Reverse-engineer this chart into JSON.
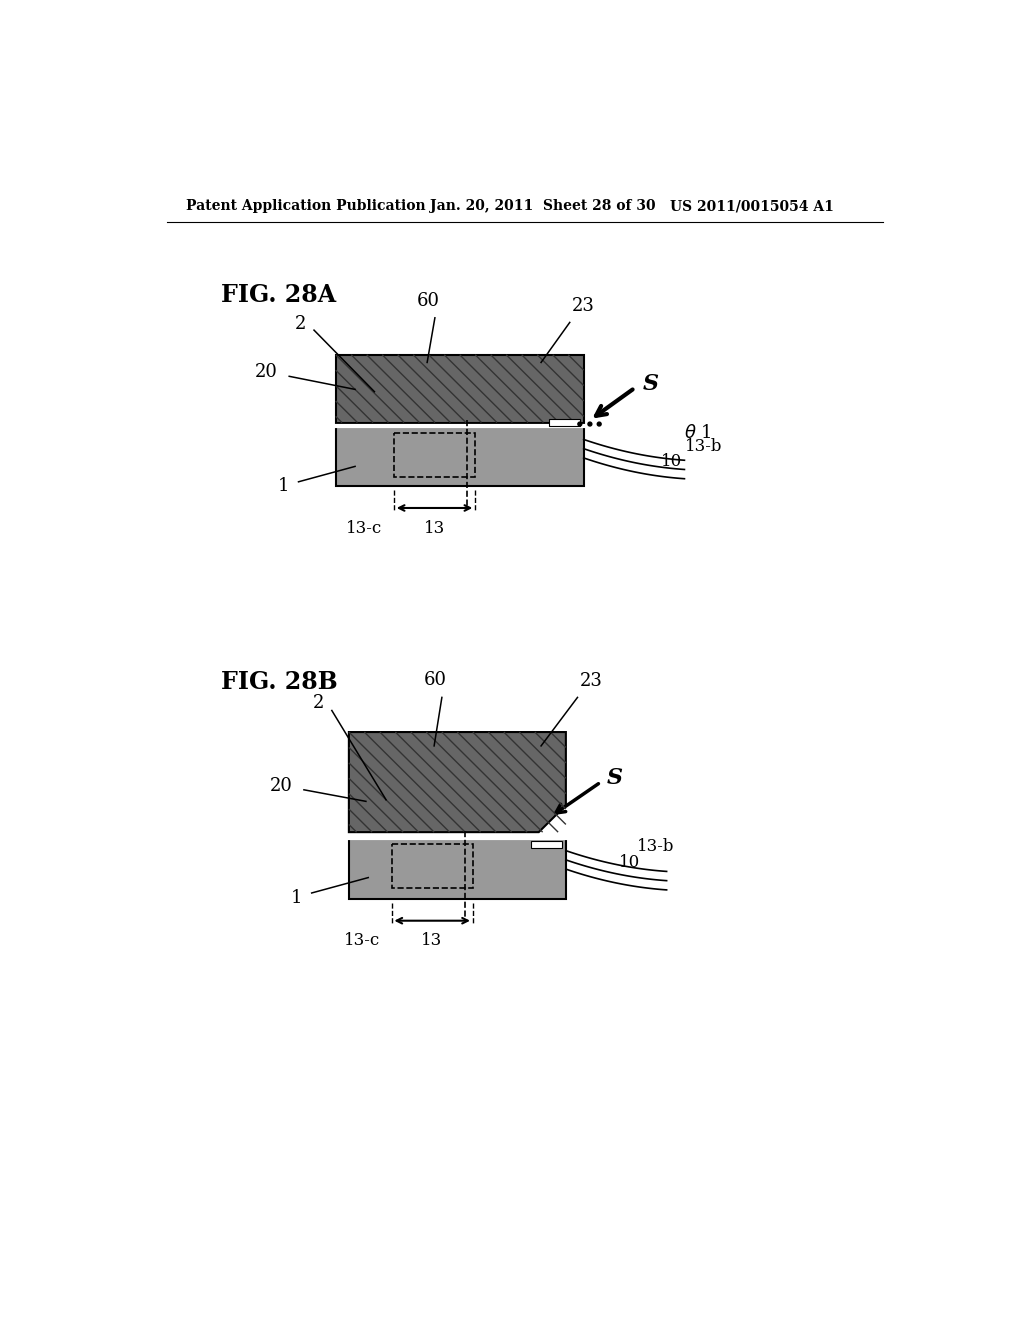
{
  "header_left": "Patent Application Publication",
  "header_mid": "Jan. 20, 2011  Sheet 28 of 30",
  "header_right": "US 2011/0015054 A1",
  "fig_a_label": "FIG. 28A",
  "fig_b_label": "FIG. 28B",
  "bg_color": "#ffffff",
  "dark_gray": "#666666",
  "medium_gray": "#999999",
  "hatch_dark": "#333333",
  "hatch_light": "#555555",
  "black": "#000000"
}
